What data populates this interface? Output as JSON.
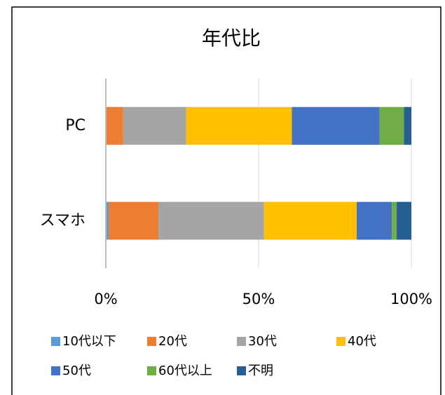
{
  "chart_data": {
    "type": "stacked-bar-horizontal",
    "title": "年代比",
    "categories": [
      "PC",
      "スマホ"
    ],
    "series": [
      {
        "name": "10代以下",
        "color": "#5b9bd5",
        "values": [
          0,
          0.9
        ]
      },
      {
        "name": "20代",
        "color": "#ed7d31",
        "values": [
          5.7,
          16.3
        ]
      },
      {
        "name": "30代",
        "color": "#a5a5a5",
        "values": [
          20.6,
          34.6
        ]
      },
      {
        "name": "40代",
        "color": "#ffc000",
        "values": [
          34.6,
          30.3
        ]
      },
      {
        "name": "50代",
        "color": "#4472c4",
        "values": [
          28.7,
          11.5
        ]
      },
      {
        "name": "60代以上",
        "color": "#70ad47",
        "values": [
          8.0,
          1.6
        ]
      },
      {
        "name": "不明",
        "color": "#255e91",
        "values": [
          2.4,
          4.8
        ]
      }
    ],
    "xlim": [
      0,
      100
    ],
    "xticks": [
      {
        "value": 0,
        "label": "0%"
      },
      {
        "value": 50,
        "label": "50%"
      },
      {
        "value": 100,
        "label": "100%"
      }
    ],
    "grid": true,
    "legend": "bottom"
  }
}
